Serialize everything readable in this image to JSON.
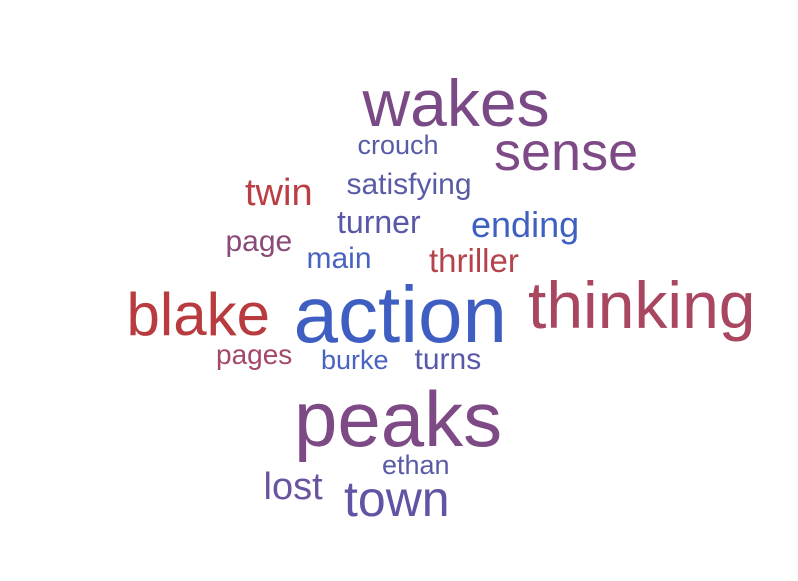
{
  "words": [
    {
      "text": "wakes",
      "color": "#7a4a86"
    },
    {
      "text": "sense",
      "color": "#7e4a86"
    },
    {
      "text": "crouch",
      "color": "#5a5ba6"
    },
    {
      "text": "satisfying",
      "color": "#5a5ba6"
    },
    {
      "text": "twin",
      "color": "#b93f45"
    },
    {
      "text": "turner",
      "color": "#5857a8"
    },
    {
      "text": "ending",
      "color": "#4060c0"
    },
    {
      "text": "page",
      "color": "#8a4a78"
    },
    {
      "text": "main",
      "color": "#4a63c0"
    },
    {
      "text": "thriller",
      "color": "#b5434b"
    },
    {
      "text": "blake",
      "color": "#b83c3f"
    },
    {
      "text": "action",
      "color": "#3f5ec2"
    },
    {
      "text": "thinking",
      "color": "#a8475f"
    },
    {
      "text": "pages",
      "color": "#a4476a"
    },
    {
      "text": "burke",
      "color": "#4a63c0"
    },
    {
      "text": "turns",
      "color": "#5857a8"
    },
    {
      "text": "peaks",
      "color": "#7e4a86"
    },
    {
      "text": "ethan",
      "color": "#5a5ba6"
    },
    {
      "text": "lost",
      "color": "#6a54a0"
    },
    {
      "text": "town",
      "color": "#6054a4"
    }
  ]
}
